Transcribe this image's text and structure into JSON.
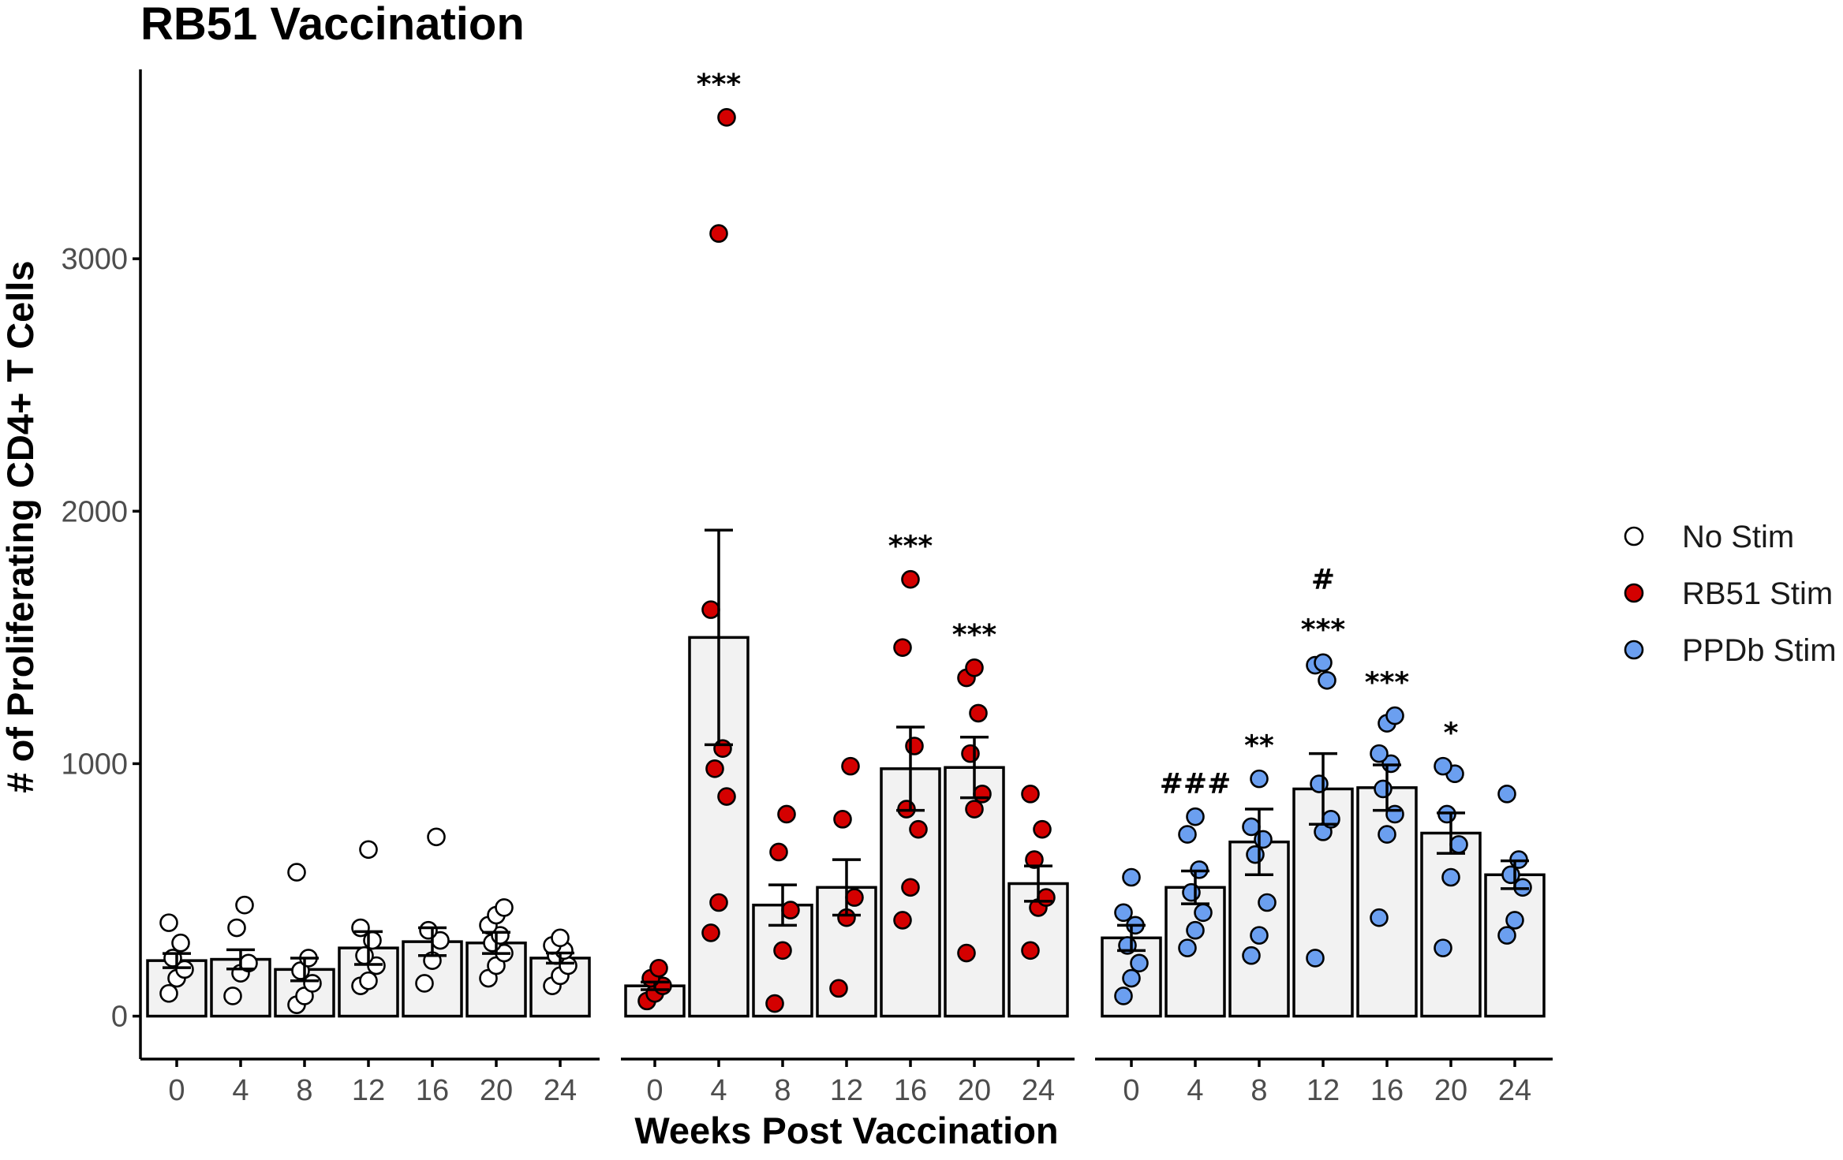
{
  "chart_data": {
    "type": "bar",
    "title": "RB51 Vaccination",
    "xlabel": "Weeks Post Vaccination",
    "ylabel": "# of Proliferating CD4+ T Cells",
    "ylim": [
      -170,
      3750
    ],
    "yticks": [
      0,
      1000,
      2000,
      3000
    ],
    "categories": [
      "0",
      "4",
      "8",
      "12",
      "16",
      "20",
      "24"
    ],
    "colors": {
      "No Stim": "#ffffff",
      "RB51 Stim": "#d40000",
      "PPDb Stim": "#6b9ff0",
      "bar_fill": "#f2f2f2"
    },
    "series": [
      {
        "name": "No Stim",
        "means": [
          220,
          225,
          185,
          270,
          295,
          290,
          230
        ],
        "sem": [
          28,
          38,
          45,
          65,
          55,
          42,
          20
        ],
        "points": [
          [
            90,
            150,
            185,
            230,
            290,
            370
          ],
          [
            80,
            170,
            210,
            350,
            440
          ],
          [
            45,
            80,
            130,
            180,
            230,
            570
          ],
          [
            120,
            140,
            200,
            240,
            300,
            350,
            660
          ],
          [
            130,
            220,
            300,
            340,
            710
          ],
          [
            150,
            200,
            250,
            290,
            320,
            360,
            400,
            430
          ],
          [
            120,
            160,
            200,
            240,
            260,
            280,
            310
          ]
        ],
        "annotations": [
          "",
          "",
          "",
          "",
          "",
          "",
          ""
        ]
      },
      {
        "name": "RB51 Stim",
        "means": [
          120,
          1500,
          440,
          510,
          980,
          985,
          525
        ],
        "sem": [
          15,
          425,
          80,
          110,
          165,
          120,
          70
        ],
        "points": [
          [
            60,
            90,
            120,
            150,
            190
          ],
          [
            330,
            450,
            870,
            980,
            1060,
            1610,
            3100,
            3560
          ],
          [
            50,
            260,
            420,
            650,
            800
          ],
          [
            110,
            390,
            470,
            780,
            990
          ],
          [
            380,
            510,
            740,
            820,
            1070,
            1460,
            1730
          ],
          [
            250,
            820,
            880,
            1040,
            1200,
            1340,
            1380
          ],
          [
            260,
            430,
            470,
            620,
            740,
            880
          ]
        ],
        "annotations": [
          "",
          "***",
          "",
          "",
          "***",
          "***",
          ""
        ]
      },
      {
        "name": "PPDb Stim",
        "means": [
          310,
          510,
          690,
          900,
          905,
          725,
          560
        ],
        "sem": [
          50,
          65,
          130,
          140,
          90,
          80,
          55
        ],
        "points": [
          [
            80,
            150,
            210,
            280,
            360,
            410,
            550
          ],
          [
            270,
            340,
            410,
            490,
            580,
            720,
            790
          ],
          [
            240,
            320,
            450,
            640,
            700,
            750,
            940
          ],
          [
            230,
            730,
            780,
            920,
            1330,
            1390,
            1400
          ],
          [
            390,
            720,
            800,
            900,
            1000,
            1040,
            1160,
            1190
          ],
          [
            270,
            550,
            680,
            800,
            960,
            990
          ],
          [
            320,
            380,
            510,
            560,
            620,
            880
          ]
        ],
        "annotations": [
          "",
          "###",
          "**",
          "***",
          "***",
          "*",
          ""
        ],
        "annotations_upper": [
          "",
          "",
          "",
          "#",
          "",
          "",
          ""
        ]
      }
    ],
    "legend": {
      "position": "right",
      "entries": [
        "No Stim",
        "RB51 Stim",
        "PPDb Stim"
      ]
    }
  }
}
